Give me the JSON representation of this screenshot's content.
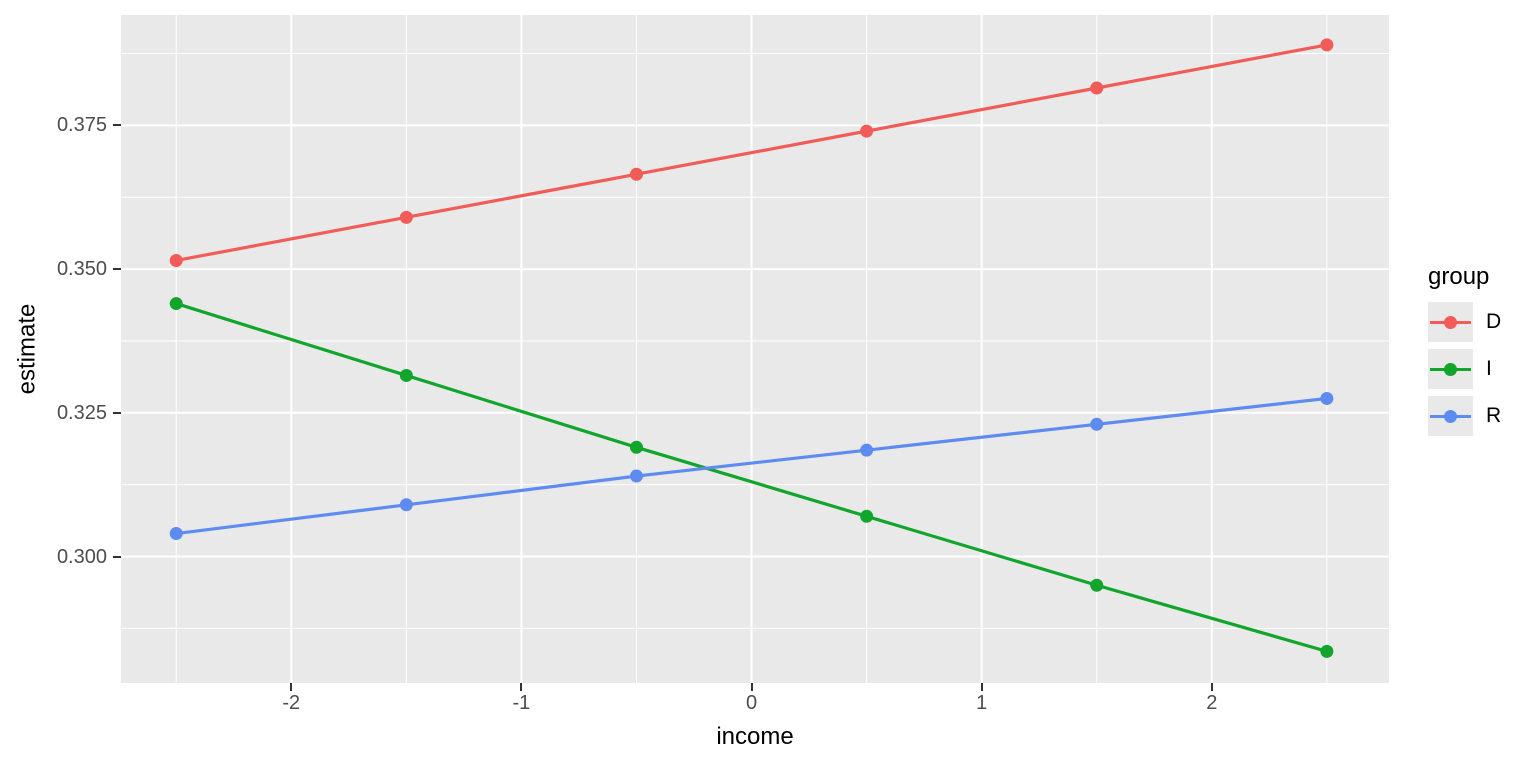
{
  "chart_data": {
    "type": "line",
    "title": "",
    "xlabel": "income",
    "ylabel": "estimate",
    "x": [
      -2.5,
      -1.5,
      -0.5,
      0.5,
      1.5,
      2.5
    ],
    "series": [
      {
        "name": "D",
        "color": "#F25C58",
        "values": [
          0.3515,
          0.359,
          0.3665,
          0.374,
          0.3815,
          0.389
        ]
      },
      {
        "name": "I",
        "color": "#11A52C",
        "values": [
          0.344,
          0.3315,
          0.319,
          0.307,
          0.295,
          0.2835
        ]
      },
      {
        "name": "R",
        "color": "#5D8BF0",
        "values": [
          0.304,
          0.309,
          0.314,
          0.3185,
          0.323,
          0.3275
        ]
      }
    ],
    "xlim": [
      -2.74,
      2.77
    ],
    "ylim": [
      0.278,
      0.3942
    ],
    "x_ticks": [
      {
        "value": -2,
        "label": "-2"
      },
      {
        "value": -1,
        "label": "-1"
      },
      {
        "value": 0,
        "label": "0"
      },
      {
        "value": 1,
        "label": "1"
      },
      {
        "value": 2,
        "label": "2"
      }
    ],
    "y_ticks": [
      {
        "value": 0.3,
        "label": "0.300"
      },
      {
        "value": 0.325,
        "label": "0.325"
      },
      {
        "value": 0.35,
        "label": "0.350"
      },
      {
        "value": 0.375,
        "label": "0.375"
      }
    ],
    "x_minor_ticks": [
      -2.5,
      -1.5,
      -0.5,
      0.5,
      1.5,
      2.5
    ],
    "y_minor_ticks": [
      0.2875,
      0.3125,
      0.3375,
      0.3625,
      0.3875
    ],
    "grid": true,
    "legend": {
      "title": "group",
      "position": "right"
    },
    "marker": "circle"
  },
  "styles": {
    "panel_bg": "#E9E9E9",
    "grid_color": "#FFFFFF",
    "tick_color": "#333333",
    "tick_label_color": "#4D4D4D",
    "axis_title_color": "#000000",
    "background": "#FFFFFF"
  }
}
